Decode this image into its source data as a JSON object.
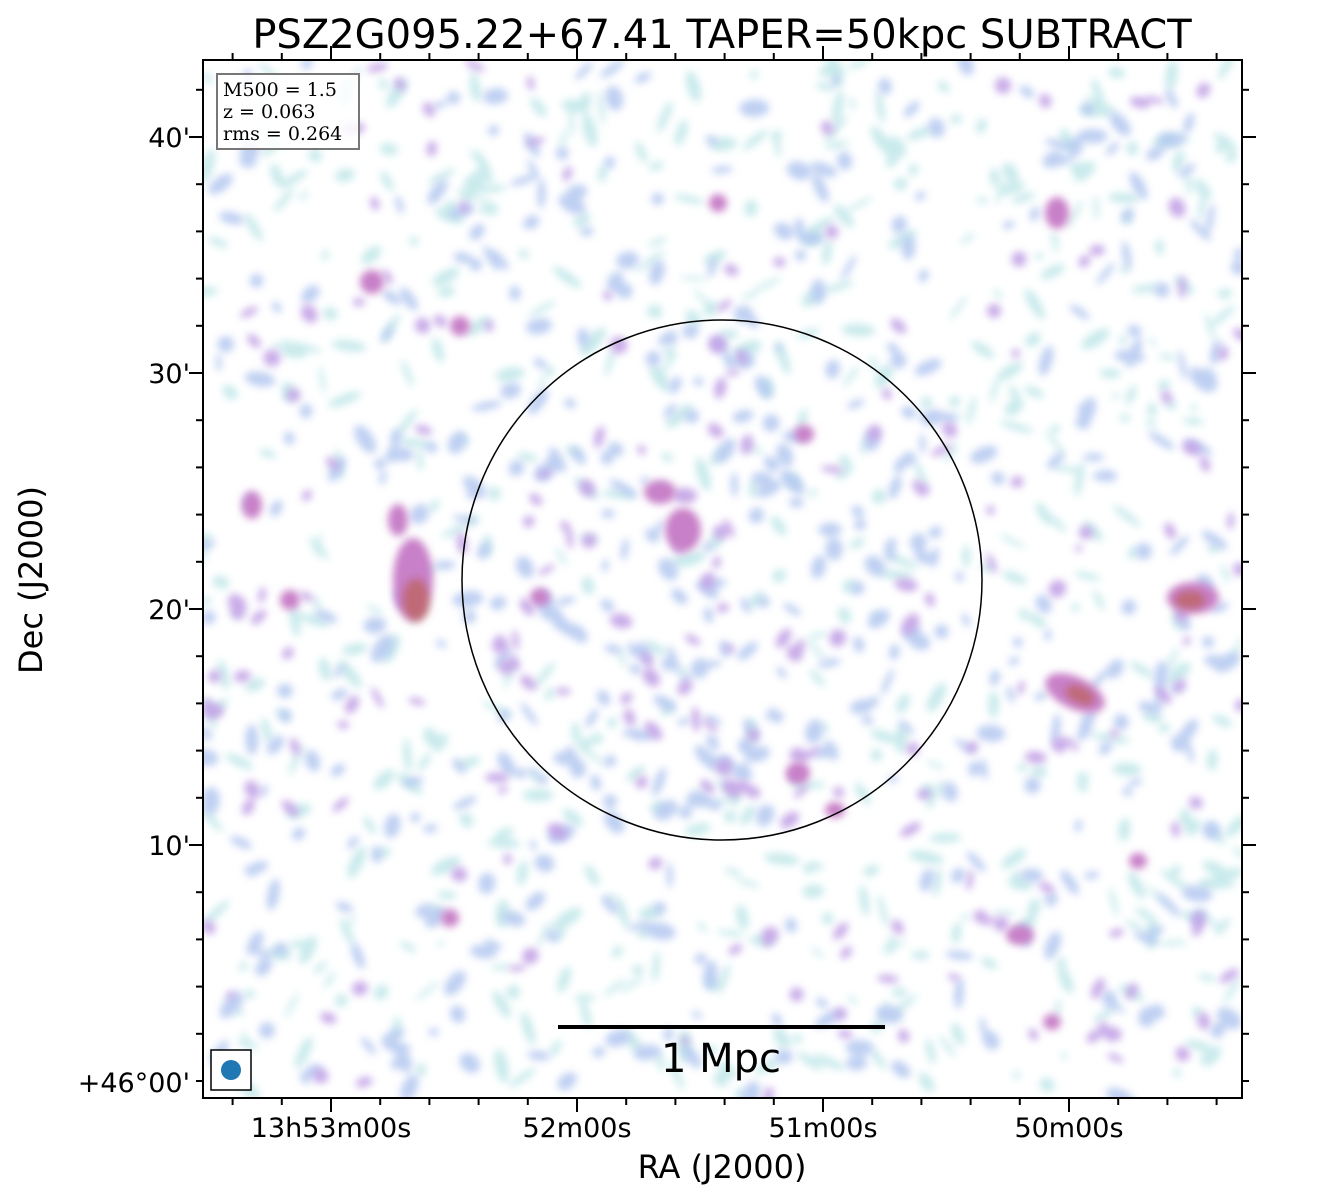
{
  "figure": {
    "title": "PSZ2G095.22+67.41 TAPER=50kpc SUBTRACT",
    "xlabel": "RA (J2000)",
    "ylabel": "Dec (J2000)",
    "x_ticks": [
      "13h53m00s",
      "52m00s",
      "51m00s",
      "50m00s"
    ],
    "y_ticks": [
      "40'",
      "30'",
      "20'",
      "10'",
      "+46°00'"
    ],
    "info": {
      "line1": "M500 = 1.5",
      "line2": "z = 0.063",
      "line3": "rms = 0.264"
    },
    "scale_bar_label": "1 Mpc",
    "colors": {
      "light": "#bfe6e8",
      "blue": "#b3c7f0",
      "violet": "#c2a2e6",
      "magenta": "#c880c8",
      "red": "#c06a78",
      "beam": "#1f77b4"
    }
  }
}
